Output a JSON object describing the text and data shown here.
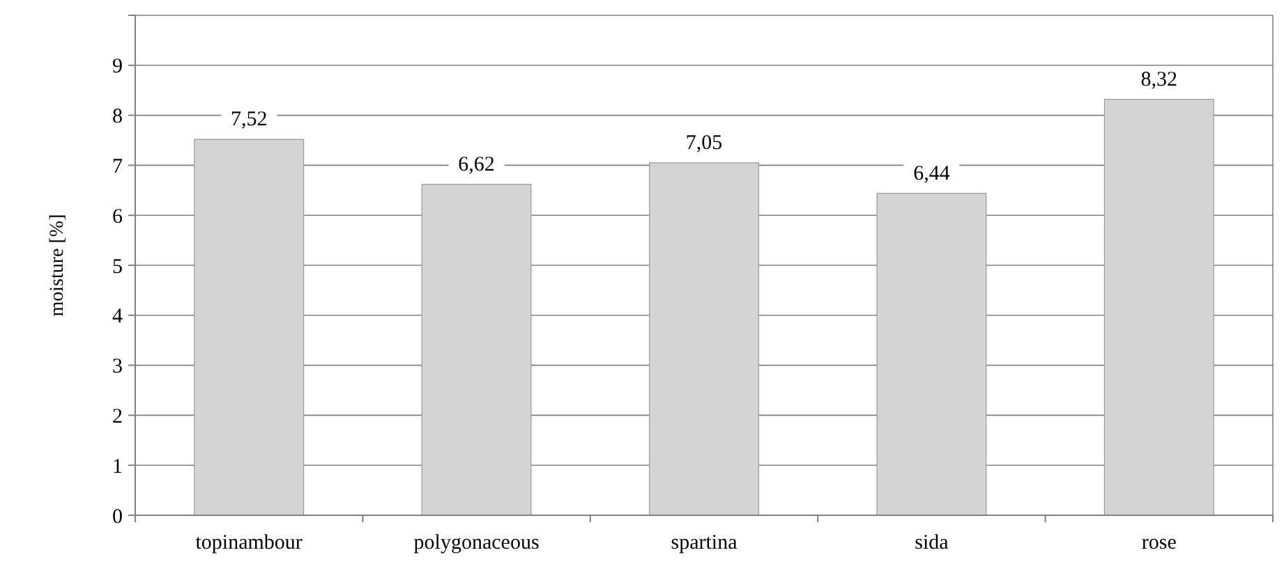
{
  "chart_data": {
    "type": "bar",
    "ylabel": "moisture [%]",
    "categories": [
      "topinambour",
      "polygonaceous",
      "spartina",
      "sida",
      "rose"
    ],
    "values": [
      7.52,
      6.62,
      7.05,
      6.44,
      8.32
    ],
    "value_labels": [
      "7,52",
      "6,62",
      "7,05",
      "6,44",
      "8,32"
    ],
    "color": "#d4d4d4",
    "ylim": [
      0,
      10
    ],
    "yticks": [
      0,
      1,
      2,
      3,
      4,
      5,
      6,
      7,
      8,
      9,
      {
        "value": 10,
        "label": null
      }
    ],
    "grid": "y"
  }
}
